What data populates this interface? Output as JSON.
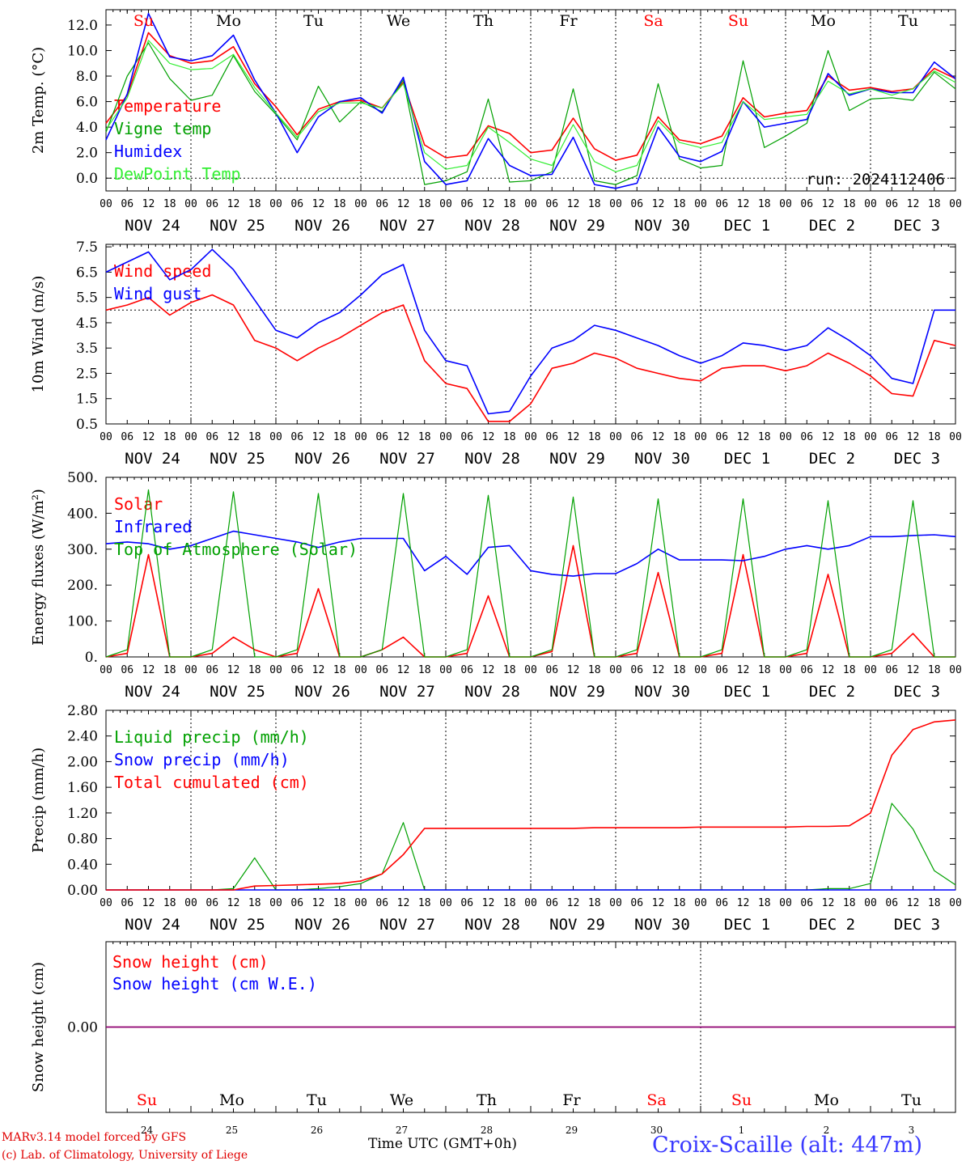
{
  "days": [
    {
      "dow": "Su",
      "date": "NOV 24",
      "num": "24",
      "weekend": true
    },
    {
      "dow": "Mo",
      "date": "NOV 25",
      "num": "25",
      "weekend": false
    },
    {
      "dow": "Tu",
      "date": "NOV 26",
      "num": "26",
      "weekend": false
    },
    {
      "dow": "We",
      "date": "NOV 27",
      "num": "27",
      "weekend": false
    },
    {
      "dow": "Th",
      "date": "NOV 28",
      "num": "28",
      "weekend": false
    },
    {
      "dow": "Fr",
      "date": "NOV 29",
      "num": "29",
      "weekend": false
    },
    {
      "dow": "Sa",
      "date": "NOV 30",
      "num": "30",
      "weekend": true
    },
    {
      "dow": "Su",
      "date": "DEC  1",
      "num": "1",
      "weekend": true
    },
    {
      "dow": "Mo",
      "date": "DEC  2",
      "num": "2",
      "weekend": false
    },
    {
      "dow": "Tu",
      "date": "DEC  3",
      "num": "3",
      "weekend": false
    }
  ],
  "hour_ticks": [
    "00",
    "06",
    "12",
    "18"
  ],
  "run_label": "run: 2024112406",
  "footer": {
    "credit_line1": "MARv3.14 model forced by GFS",
    "credit_line2": "(c) Lab. of Climatology, University of Liege",
    "x_title": "Time UTC (GMT+0h)",
    "x_title_month": "NOV",
    "x_title_month2": "DEC",
    "station": "Croix-Scaille (alt: 447m)"
  },
  "colors": {
    "red": "#ff0000",
    "green": "#00a000",
    "blue": "#0000ff",
    "lightgreen": "#33ee33",
    "purple": "#800080",
    "weekend": "#ff0000"
  },
  "chart_data": [
    {
      "type": "line",
      "ylabel": "2m Temp. (°C)",
      "ylim": [
        -1,
        13.2
      ],
      "yticks": [
        "0.0",
        "2.0",
        "4.0",
        "6.0",
        "8.0",
        "10.0",
        "12.0"
      ],
      "ytick_values": [
        0,
        2,
        4,
        6,
        8,
        10,
        12
      ],
      "hline": 0,
      "x_hours": [
        0,
        6,
        12,
        18,
        24,
        30,
        36,
        42,
        48,
        54,
        60,
        66,
        72,
        78,
        84,
        90,
        96,
        102,
        108,
        114,
        120,
        126,
        132,
        138,
        144,
        150,
        156,
        162,
        168,
        174,
        180,
        186,
        192,
        198,
        204,
        210,
        216,
        222,
        228,
        234,
        240
      ],
      "series": [
        {
          "name": "Temperature",
          "color": "red",
          "values": [
            4.3,
            6.5,
            11.4,
            9.6,
            9.0,
            9.2,
            10.3,
            7.4,
            5.6,
            3.4,
            5.4,
            6.0,
            6.1,
            5.5,
            7.5,
            2.6,
            1.6,
            1.8,
            4.1,
            3.5,
            2.0,
            2.2,
            4.7,
            2.3,
            1.4,
            1.8,
            4.8,
            3.0,
            2.7,
            3.3,
            6.3,
            4.8,
            5.1,
            5.3,
            8.0,
            6.9,
            7.1,
            6.8,
            7.0,
            8.6,
            7.8
          ]
        },
        {
          "name": "Vigne temp",
          "color": "green",
          "values": [
            3.6,
            8.0,
            10.6,
            7.8,
            6.1,
            6.5,
            9.6,
            6.8,
            5.0,
            3.0,
            7.2,
            4.4,
            6.0,
            5.2,
            7.7,
            -0.5,
            -0.2,
            0.5,
            6.2,
            -0.3,
            -0.2,
            0.5,
            7.0,
            -0.2,
            -0.5,
            0.2,
            7.4,
            1.5,
            0.8,
            1.0,
            9.2,
            2.4,
            3.3,
            4.3,
            10.0,
            5.3,
            6.2,
            6.3,
            6.1,
            8.3,
            7.0
          ]
        },
        {
          "name": "Humidex",
          "color": "blue",
          "values": [
            3.0,
            6.6,
            12.9,
            9.5,
            9.2,
            9.6,
            11.2,
            7.7,
            5.1,
            2.0,
            4.8,
            6.0,
            6.3,
            5.1,
            7.9,
            1.3,
            -0.5,
            -0.2,
            3.1,
            1.0,
            0.2,
            0.3,
            3.2,
            -0.5,
            -0.8,
            -0.4,
            4.0,
            1.7,
            1.3,
            2.1,
            6.0,
            4.0,
            4.3,
            4.6,
            8.2,
            6.5,
            7.0,
            6.7,
            6.7,
            9.1,
            7.8
          ]
        },
        {
          "name": "DewPoint Temp",
          "color": "lightgreen",
          "values": [
            3.8,
            6.3,
            10.8,
            9.0,
            8.5,
            8.6,
            9.7,
            7.1,
            5.1,
            3.2,
            5.2,
            5.9,
            5.9,
            5.5,
            7.4,
            2.0,
            0.7,
            1.0,
            4.0,
            2.8,
            1.5,
            1.0,
            4.2,
            1.3,
            0.5,
            1.0,
            4.5,
            2.8,
            2.4,
            2.8,
            6.0,
            4.6,
            4.8,
            5.0,
            7.6,
            6.6,
            7.0,
            6.5,
            7.0,
            8.4,
            7.5
          ]
        }
      ]
    },
    {
      "type": "line",
      "ylabel": "10m Wind (m/s)",
      "ylim": [
        0.5,
        7.6
      ],
      "yticks": [
        "0.5",
        "1.5",
        "2.5",
        "3.5",
        "4.5",
        "5.5",
        "6.5",
        "7.5"
      ],
      "ytick_values": [
        0.5,
        1.5,
        2.5,
        3.5,
        4.5,
        5.5,
        6.5,
        7.5
      ],
      "hline": 5.0,
      "x_hours": [
        0,
        6,
        12,
        18,
        24,
        30,
        36,
        42,
        48,
        54,
        60,
        66,
        72,
        78,
        84,
        90,
        96,
        102,
        108,
        114,
        120,
        126,
        132,
        138,
        144,
        150,
        156,
        162,
        168,
        174,
        180,
        186,
        192,
        198,
        204,
        210,
        216,
        222,
        228,
        234,
        240
      ],
      "series": [
        {
          "name": "Wind speed",
          "color": "red",
          "values": [
            5.0,
            5.2,
            5.5,
            4.8,
            5.3,
            5.6,
            5.2,
            3.8,
            3.5,
            3.0,
            3.5,
            3.9,
            4.4,
            4.9,
            5.2,
            3.0,
            2.1,
            1.9,
            0.6,
            0.6,
            1.3,
            2.7,
            2.9,
            3.3,
            3.1,
            2.7,
            2.5,
            2.3,
            2.2,
            2.7,
            2.8,
            2.8,
            2.6,
            2.8,
            3.3,
            2.9,
            2.4,
            1.7,
            1.6,
            3.8,
            3.6
          ]
        },
        {
          "name": "Wind gust",
          "color": "blue",
          "values": [
            6.5,
            6.9,
            7.3,
            6.2,
            6.6,
            7.4,
            6.6,
            5.4,
            4.2,
            3.9,
            4.5,
            4.9,
            5.6,
            6.4,
            6.8,
            4.2,
            3.0,
            2.8,
            0.9,
            1.0,
            2.4,
            3.5,
            3.8,
            4.4,
            4.2,
            3.9,
            3.6,
            3.2,
            2.9,
            3.2,
            3.7,
            3.6,
            3.4,
            3.6,
            4.3,
            3.8,
            3.2,
            2.3,
            2.1,
            5.0,
            5.0
          ]
        }
      ]
    },
    {
      "type": "line",
      "ylabel": "Energy fluxes (W/m²)",
      "ylim": [
        0,
        500
      ],
      "yticks": [
        "0.",
        "100.",
        "200.",
        "300.",
        "400.",
        "500."
      ],
      "ytick_values": [
        0,
        100,
        200,
        300,
        400,
        500
      ],
      "x_hours": [
        0,
        6,
        12,
        18,
        24,
        30,
        36,
        42,
        48,
        54,
        60,
        66,
        72,
        78,
        84,
        90,
        96,
        102,
        108,
        114,
        120,
        126,
        132,
        138,
        144,
        150,
        156,
        162,
        168,
        174,
        180,
        186,
        192,
        198,
        204,
        210,
        216,
        222,
        228,
        234,
        240
      ],
      "series": [
        {
          "name": "Solar",
          "color": "red",
          "values": [
            0,
            10,
            285,
            0,
            0,
            10,
            55,
            20,
            0,
            10,
            190,
            0,
            0,
            20,
            55,
            0,
            0,
            10,
            170,
            0,
            0,
            15,
            310,
            0,
            0,
            10,
            235,
            0,
            0,
            10,
            285,
            0,
            0,
            10,
            230,
            0,
            0,
            10,
            65,
            0,
            0
          ]
        },
        {
          "name": "Infrared",
          "color": "blue",
          "values": [
            315,
            320,
            315,
            300,
            310,
            330,
            350,
            340,
            330,
            320,
            305,
            320,
            330,
            330,
            330,
            240,
            280,
            230,
            305,
            310,
            240,
            230,
            225,
            232,
            232,
            260,
            300,
            270,
            270,
            270,
            268,
            280,
            300,
            310,
            300,
            310,
            335,
            335,
            338,
            340,
            335
          ]
        },
        {
          "name": "Top of Atmosphere (Solar)",
          "color": "green",
          "values": [
            0,
            20,
            465,
            0,
            0,
            20,
            460,
            0,
            0,
            20,
            455,
            0,
            0,
            20,
            455,
            0,
            0,
            20,
            450,
            0,
            0,
            20,
            445,
            0,
            0,
            20,
            440,
            0,
            0,
            20,
            440,
            0,
            0,
            20,
            435,
            0,
            0,
            20,
            435,
            0,
            0
          ]
        }
      ]
    },
    {
      "type": "line",
      "ylabel": "Precip (mm/h)",
      "ylim": [
        0,
        2.8
      ],
      "yticks": [
        "0.00",
        "0.40",
        "0.80",
        "1.20",
        "1.60",
        "2.00",
        "2.40",
        "2.80"
      ],
      "ytick_values": [
        0,
        0.4,
        0.8,
        1.2,
        1.6,
        2.0,
        2.4,
        2.8
      ],
      "x_hours": [
        0,
        6,
        12,
        18,
        24,
        30,
        36,
        42,
        48,
        54,
        60,
        66,
        72,
        78,
        84,
        90,
        96,
        102,
        108,
        114,
        120,
        126,
        132,
        138,
        144,
        150,
        156,
        162,
        168,
        174,
        180,
        186,
        192,
        198,
        204,
        210,
        216,
        222,
        228,
        234,
        240
      ],
      "series": [
        {
          "name": "Liquid precip (mm/h)",
          "color": "green",
          "values": [
            0,
            0,
            0,
            0,
            0,
            0,
            0.02,
            0.5,
            0,
            0,
            0.02,
            0.05,
            0.1,
            0.25,
            1.05,
            0,
            0,
            0,
            0,
            0,
            0,
            0,
            0,
            0,
            0,
            0,
            0,
            0,
            0,
            0,
            0,
            0,
            0,
            0,
            0.02,
            0.02,
            0.1,
            1.35,
            0.95,
            0.3,
            0.08
          ]
        },
        {
          "name": "Snow precip (mm/h)",
          "color": "blue",
          "values": [
            0,
            0,
            0,
            0,
            0,
            0,
            0,
            0,
            0,
            0,
            0,
            0,
            0,
            0,
            0,
            0,
            0,
            0,
            0,
            0,
            0,
            0,
            0,
            0,
            0,
            0,
            0,
            0,
            0,
            0,
            0,
            0,
            0,
            0,
            0,
            0,
            0,
            0,
            0,
            0,
            0
          ]
        },
        {
          "name": "Total cumulated (cm)",
          "color": "red",
          "values": [
            0,
            0,
            0,
            0,
            0,
            0,
            0,
            0.06,
            0.07,
            0.08,
            0.09,
            0.1,
            0.14,
            0.25,
            0.55,
            0.96,
            0.96,
            0.96,
            0.96,
            0.96,
            0.96,
            0.96,
            0.96,
            0.97,
            0.97,
            0.97,
            0.97,
            0.97,
            0.98,
            0.98,
            0.98,
            0.98,
            0.98,
            0.99,
            0.99,
            1.0,
            1.2,
            2.1,
            2.5,
            2.62,
            2.65
          ]
        }
      ]
    },
    {
      "type": "line",
      "ylabel": "Snow height (cm)",
      "ylim": [
        -1,
        1
      ],
      "yticks": [
        "0.00"
      ],
      "ytick_values": [
        0
      ],
      "x_hours": [
        0,
        240
      ],
      "series": [
        {
          "name": "Snow height (cm)",
          "color": "red",
          "values": [
            0,
            0
          ]
        },
        {
          "name": "Snow height (cm W.E.)",
          "color": "blue",
          "values": [
            0,
            0
          ]
        }
      ]
    }
  ]
}
